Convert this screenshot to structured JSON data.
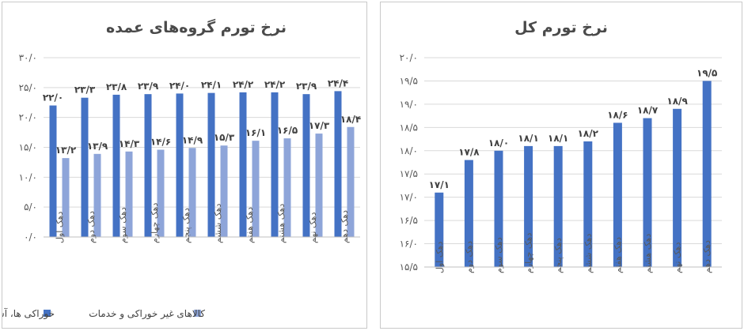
{
  "chart_data": [
    {
      "type": "bar",
      "title": "نرخ تورم گروه‌های عمده",
      "categories": [
        "دهک اول",
        "دهک دوم",
        "دهک سوم",
        "دهک چهارم",
        "دهک پنجم",
        "دهک ششم",
        "دهک هفتم",
        "دهک هشتم",
        "دهک نهم",
        "دهک دهم"
      ],
      "series": [
        {
          "name": "خوراکی ها، آشامیدنی ها و دخانیات",
          "color": "#4472c4",
          "values": [
            22.0,
            23.3,
            23.8,
            23.9,
            24.0,
            24.1,
            24.2,
            24.2,
            23.9,
            24.4
          ],
          "labels": [
            "۲۲/۰",
            "۲۳/۳",
            "۲۳/۸",
            "۲۳/۹",
            "۲۴/۰",
            "۲۴/۱",
            "۲۴/۲",
            "۲۴/۲",
            "۲۳/۹",
            "۲۴/۴"
          ]
        },
        {
          "name": "کالاهای غیر خوراکی و خدمات",
          "color": "#8ea5d9",
          "values": [
            13.2,
            13.9,
            14.3,
            14.6,
            14.9,
            15.3,
            16.1,
            16.5,
            17.3,
            18.4
          ],
          "labels": [
            "۱۳/۲",
            "۱۳/۹",
            "۱۴/۳",
            "۱۴/۶",
            "۱۴/۹",
            "۱۵/۳",
            "۱۶/۱",
            "۱۶/۵",
            "۱۷/۳",
            "۱۸/۴"
          ]
        }
      ],
      "ylim": [
        0,
        30
      ],
      "yticks": [
        0,
        5,
        10,
        15,
        20,
        25,
        30
      ],
      "ytick_labels": [
        "۰/۰",
        "۵/۰",
        "۱۰/۰",
        "۱۵/۰",
        "۲۰/۰",
        "۲۵/۰",
        "۳۰/۰"
      ],
      "grid": true,
      "legend": "bottom"
    },
    {
      "type": "bar",
      "title": "نرخ تورم کل",
      "categories": [
        "دهک اول",
        "دهک دوم",
        "دهک سوم",
        "دهک چهارم",
        "دهک پنجم",
        "دهک ششم",
        "دهک هفتم",
        "دهک هشتم",
        "دهک نهم",
        "دهک دهم"
      ],
      "series": [
        {
          "color": "#4472c4",
          "values": [
            17.1,
            17.8,
            18.0,
            18.1,
            18.1,
            18.2,
            18.6,
            18.7,
            18.9,
            19.5
          ],
          "labels": [
            "۱۷/۱",
            "۱۷/۸",
            "۱۸/۰",
            "۱۸/۱",
            "۱۸/۱",
            "۱۸/۲",
            "۱۸/۶",
            "۱۸/۷",
            "۱۸/۹",
            "۱۹/۵"
          ]
        }
      ],
      "ylim": [
        15.5,
        20
      ],
      "yticks": [
        15.5,
        16,
        16.5,
        17,
        17.5,
        18,
        18.5,
        19,
        19.5,
        20
      ],
      "ytick_labels": [
        "۱۵/۵",
        "۱۶/۰",
        "۱۶/۵",
        "۱۷/۰",
        "۱۷/۵",
        "۱۸/۰",
        "۱۸/۵",
        "۱۹/۰",
        "۱۹/۵",
        "۲۰/۰"
      ],
      "grid": true,
      "legend": "none"
    }
  ]
}
